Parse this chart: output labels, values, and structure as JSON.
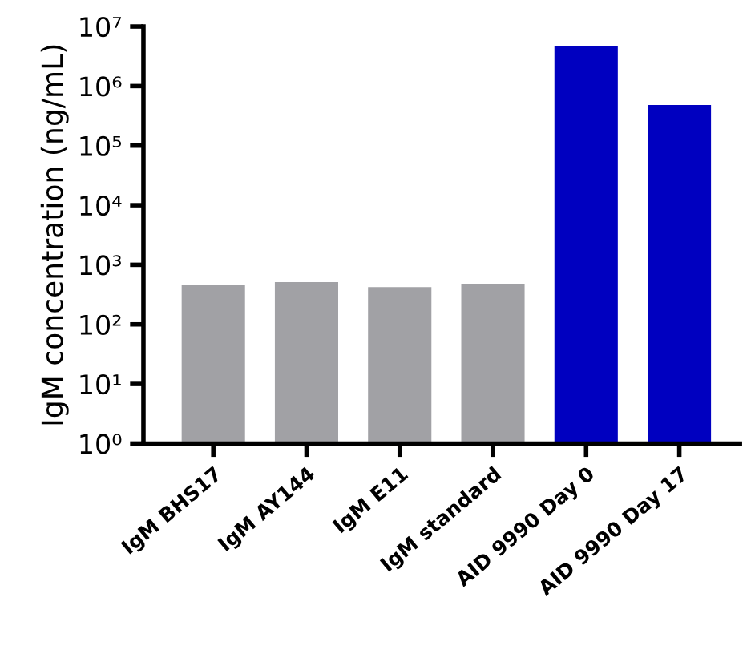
{
  "chart_data": {
    "type": "bar",
    "ylabel": "IgM concentration (ng/mL)",
    "categories": [
      "IgM BHS17",
      "IgM AY144",
      "IgM E11",
      "IgM standard",
      "AID 9990 Day 0",
      "AID 9990 Day 17"
    ],
    "values": [
      450,
      510,
      420,
      480,
      4700000,
      480000
    ],
    "colors": [
      "#a1a1a5",
      "#a1a1a5",
      "#a1a1a5",
      "#a1a1a5",
      "#0000c0",
      "#0000c0"
    ],
    "log": "y",
    "ylim": [
      1,
      10000000
    ],
    "yticks": [
      {
        "value": 1,
        "label": "10⁰"
      },
      {
        "value": 10,
        "label": "10¹"
      },
      {
        "value": 100,
        "label": "10²"
      },
      {
        "value": 1000,
        "label": "10³"
      },
      {
        "value": 10000,
        "label": "10⁴"
      },
      {
        "value": 100000,
        "label": "10⁵"
      },
      {
        "value": 1000000,
        "label": "10⁶"
      },
      {
        "value": 10000000,
        "label": "10⁷"
      }
    ],
    "grid": false,
    "legend": false
  }
}
